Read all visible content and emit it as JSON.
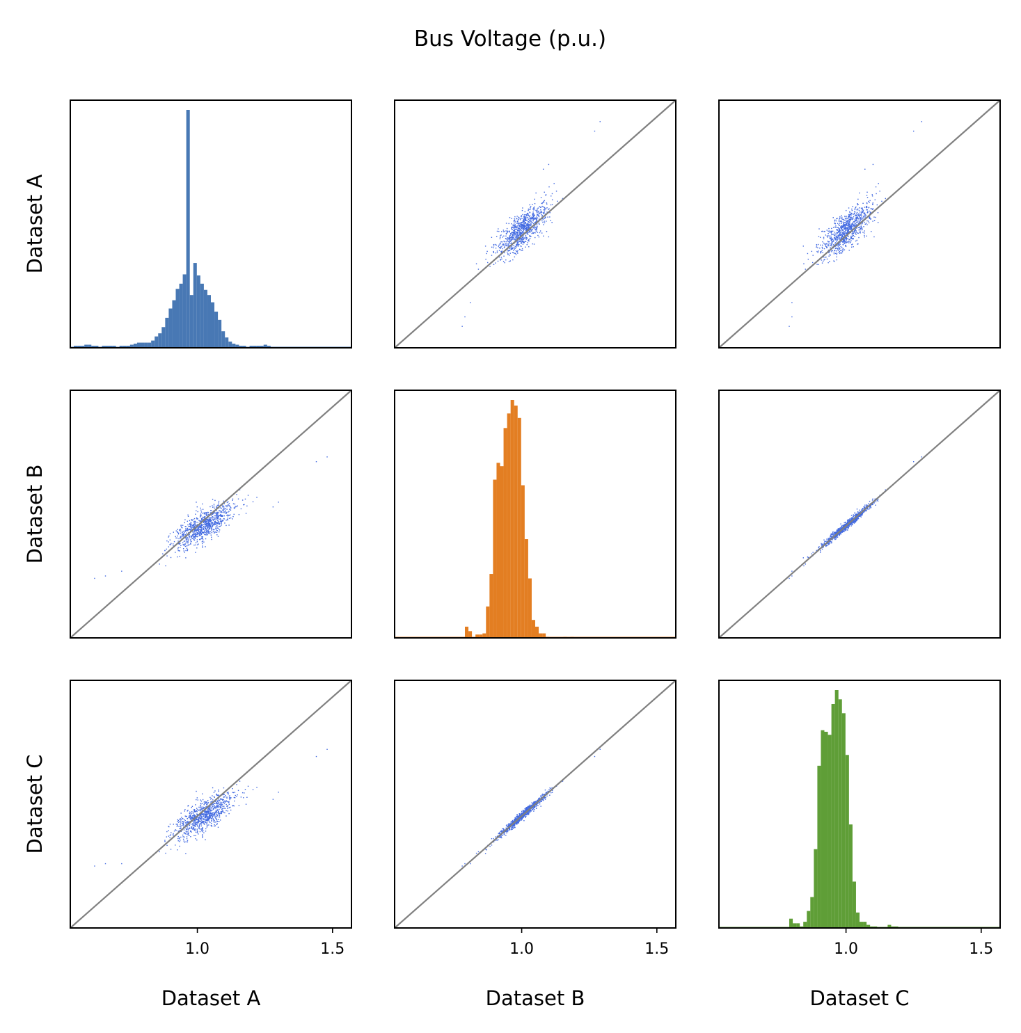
{
  "chart_data": {
    "type": "scatter-matrix",
    "title": "Bus Voltage (p.u.)",
    "variables": [
      "Dataset A",
      "Dataset B",
      "Dataset C"
    ],
    "axis_range": [
      0.53,
      1.57
    ],
    "ticks": [
      1.0,
      1.5
    ],
    "tick_labels": [
      "1.0",
      "1.5"
    ],
    "diagonal_line": "y = x",
    "colors": {
      "scatter": "#4169e1",
      "hist_a": "#4878b4",
      "hist_b": "#e37e22",
      "hist_c": "#5f9e37",
      "identity_line": "#808080"
    },
    "histograms": {
      "bin_start": 0.53,
      "bin_width": 0.013,
      "hist_a": {
        "counts": [
          0,
          2,
          2,
          2,
          3,
          3,
          2,
          2,
          0,
          2,
          2,
          2,
          2,
          0,
          2,
          2,
          2,
          3,
          4,
          5,
          5,
          5,
          5,
          7,
          11,
          14,
          20,
          29,
          38,
          46,
          57,
          62,
          71,
          230,
          51,
          82,
          70,
          62,
          56,
          51,
          44,
          35,
          27,
          16,
          10,
          6,
          4,
          3,
          2,
          2,
          1,
          2,
          2,
          2,
          2,
          3,
          2,
          0,
          1,
          1,
          1,
          1,
          0,
          0,
          0,
          0,
          0,
          0,
          0,
          0,
          0,
          0,
          0,
          0,
          0,
          0,
          0,
          0,
          0,
          0
        ]
      },
      "hist_b": {
        "counts": [
          0,
          0,
          0,
          0,
          0,
          0,
          0,
          0,
          0,
          0,
          0,
          0,
          0,
          0,
          0,
          0,
          0,
          0,
          0,
          0,
          10,
          6,
          0,
          3,
          3,
          4,
          28,
          57,
          141,
          156,
          153,
          187,
          200,
          212,
          207,
          196,
          136,
          88,
          53,
          16,
          10,
          4,
          4,
          1,
          0,
          0,
          0,
          0,
          1,
          0,
          1,
          0,
          0,
          0,
          0,
          0,
          0,
          0,
          0,
          0,
          0,
          0,
          0,
          0,
          0,
          0,
          0,
          0,
          0,
          0,
          0,
          0,
          0,
          0,
          0,
          0,
          0,
          0,
          0,
          0
        ]
      },
      "hist_c": {
        "counts": [
          0,
          0,
          0,
          0,
          0,
          0,
          0,
          0,
          0,
          0,
          0,
          0,
          0,
          0,
          0,
          0,
          0,
          0,
          0,
          0,
          6,
          3,
          3,
          1,
          4,
          11,
          20,
          51,
          105,
          128,
          127,
          125,
          145,
          154,
          148,
          139,
          112,
          67,
          30,
          10,
          4,
          4,
          2,
          1,
          1,
          0,
          0,
          0,
          2,
          1,
          1,
          0,
          0,
          0,
          0,
          0,
          0,
          0,
          0,
          0,
          0,
          0,
          0,
          0,
          0,
          0,
          0,
          0,
          0,
          0,
          0,
          0,
          0,
          0,
          0,
          0,
          0,
          0,
          0,
          0
        ]
      }
    }
  }
}
